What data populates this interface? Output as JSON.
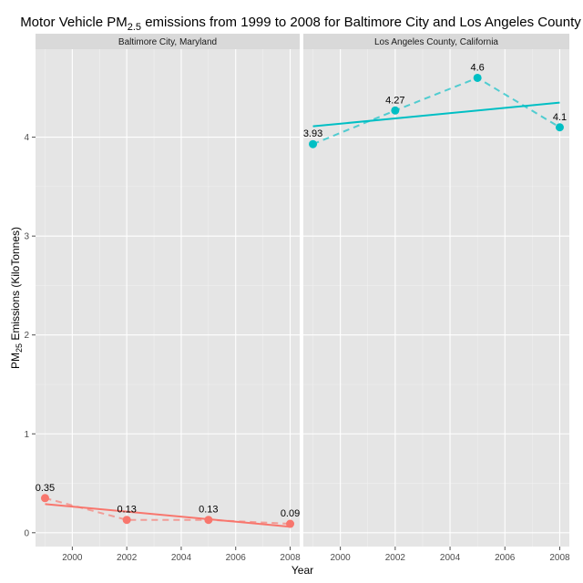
{
  "chart_data": {
    "type": "line",
    "title": {
      "prefix": "Motor Vehicle PM",
      "subscript": "2.5",
      "suffix": " emissions from 1999 to 2008 for Baltimore City and Los Angeles County"
    },
    "xlabel": "Year",
    "ylabel": {
      "prefix": "PM",
      "subscript": "25",
      "suffix": " Emissions (KiloTonnes)"
    },
    "x_ticks": [
      2000,
      2002,
      2004,
      2006,
      2008
    ],
    "y_ticks": [
      0,
      1,
      2,
      3,
      4
    ],
    "xlim": [
      1998.65,
      2008.35
    ],
    "ylim": [
      -0.14,
      4.89
    ],
    "grid": true,
    "facets": [
      {
        "strip": "Baltimore City, Maryland",
        "color": "#F8766D",
        "x": [
          1999,
          2002,
          2005,
          2008
        ],
        "y": [
          0.35,
          0.13,
          0.13,
          0.09
        ],
        "labels": [
          "0.35",
          "0.13",
          "0.13",
          "0.09"
        ],
        "trend": {
          "x": [
            1999,
            2008
          ],
          "y": [
            0.29,
            0.06
          ]
        }
      },
      {
        "strip": "Los Angeles County, California",
        "color": "#00BFC4",
        "x": [
          1999,
          2002,
          2005,
          2008
        ],
        "y": [
          3.93,
          4.27,
          4.6,
          4.1
        ],
        "labels": [
          "3.93",
          "4.27",
          "4.6",
          "4.1"
        ],
        "trend": {
          "x": [
            1999,
            2008
          ],
          "y": [
            4.11,
            4.35
          ]
        }
      }
    ]
  }
}
